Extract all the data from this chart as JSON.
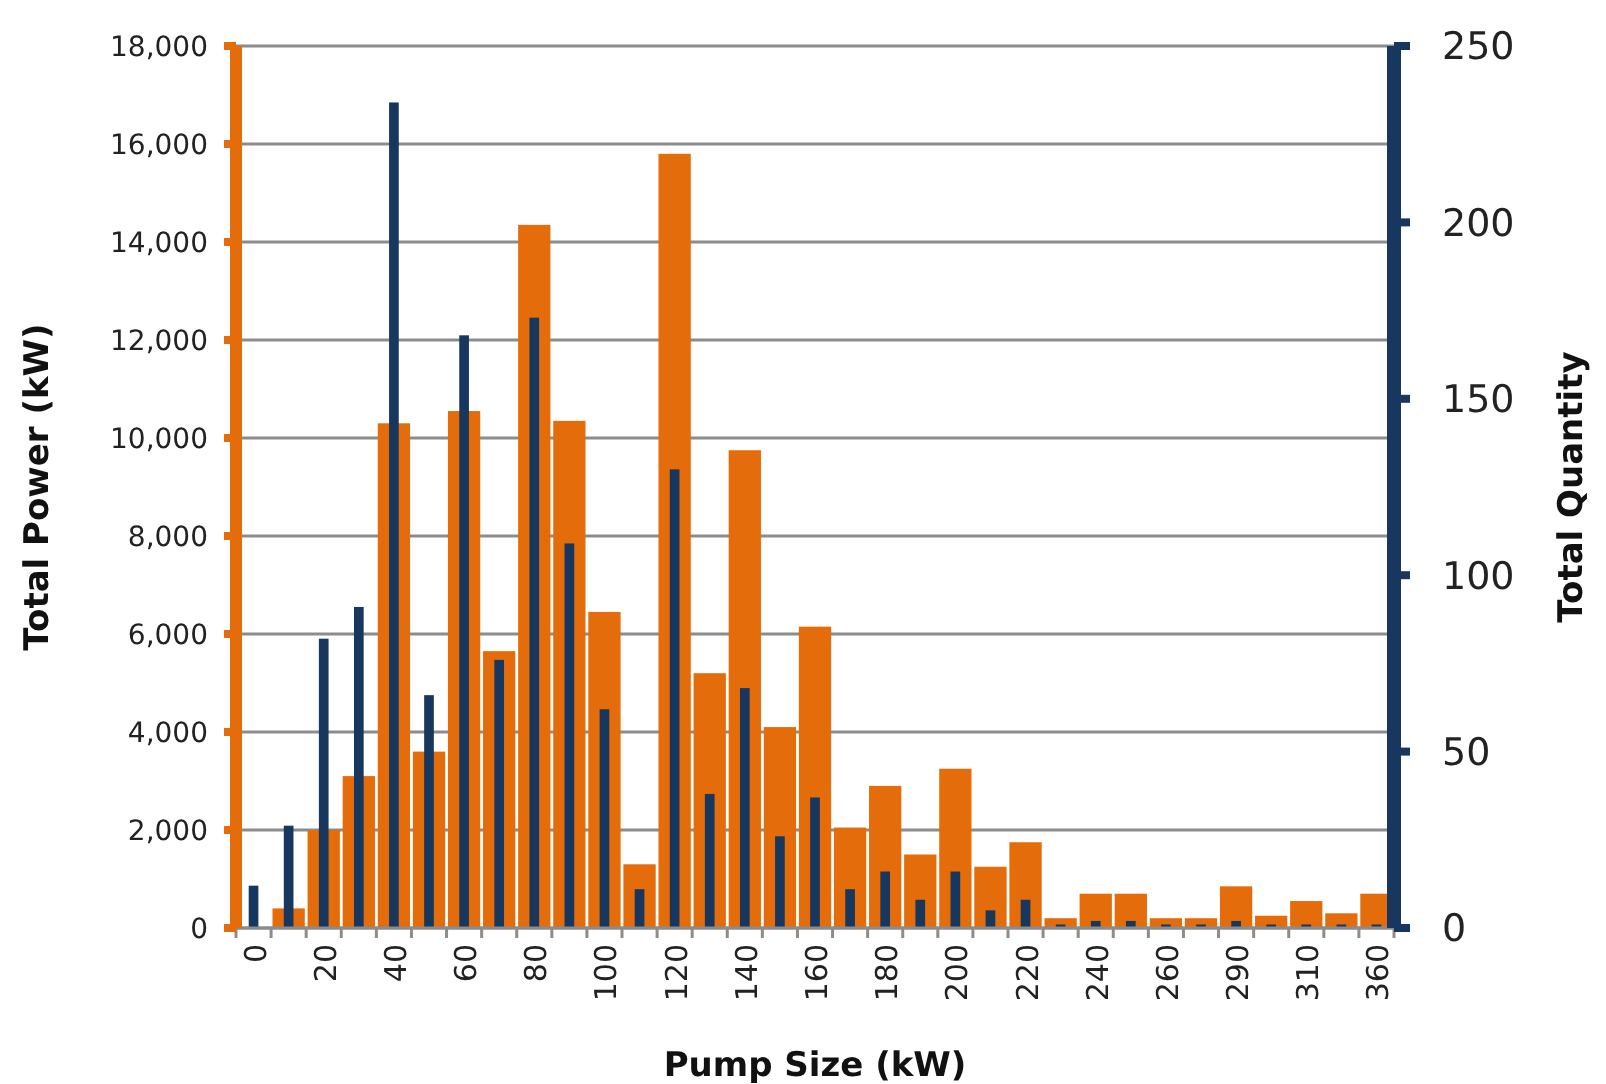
{
  "chart_data": {
    "type": "bar",
    "xlabel": "Pump Size (kW)",
    "ylabel": "Total Power (kW)",
    "y2label": "Total Quantity",
    "categories": [
      "0",
      null,
      "20",
      null,
      "40",
      null,
      "60",
      null,
      "80",
      null,
      "100",
      null,
      "120",
      null,
      "140",
      null,
      "160",
      null,
      "180",
      null,
      "200",
      null,
      "220",
      null,
      "240",
      null,
      "260",
      null,
      "290",
      null,
      "310",
      null,
      "360"
    ],
    "series": [
      {
        "color": "#e46c0a",
        "values": [
          null,
          400,
          2000,
          3100,
          10300,
          3600,
          10550,
          5650,
          14350,
          10350,
          6450,
          1300,
          15800,
          5200,
          9750,
          4100,
          6150,
          2050,
          2900,
          1500,
          3250,
          1250,
          1750,
          200,
          700,
          700,
          200,
          200,
          850,
          250,
          550,
          300,
          700
        ]
      },
      {
        "color": "#17375e",
        "axis": "y2",
        "values": [
          12,
          29,
          82,
          91,
          234,
          66,
          168,
          76,
          173,
          109,
          62,
          11,
          130,
          38,
          68,
          26,
          37,
          11,
          16,
          8,
          16,
          5,
          8,
          1,
          2,
          2,
          1,
          1,
          2,
          1,
          1,
          1,
          1
        ]
      }
    ],
    "ylim": [
      0,
      18000
    ],
    "yticks": [
      0,
      {
        "value": 2000,
        "label": "2,000"
      },
      {
        "value": 4000,
        "label": "4,000"
      },
      {
        "value": 6000,
        "label": "6,000"
      },
      {
        "value": 8000,
        "label": "8,000"
      },
      {
        "value": 10000,
        "label": "10,000"
      },
      {
        "value": 12000,
        "label": "12,000"
      },
      {
        "value": 14000,
        "label": "14,000"
      },
      {
        "value": 16000,
        "label": "16,000"
      },
      {
        "value": 18000,
        "label": "18,000"
      }
    ],
    "y2lim": [
      0,
      250
    ],
    "y2ticks": [
      0,
      50,
      100,
      150,
      200,
      250
    ],
    "grid": "y"
  }
}
